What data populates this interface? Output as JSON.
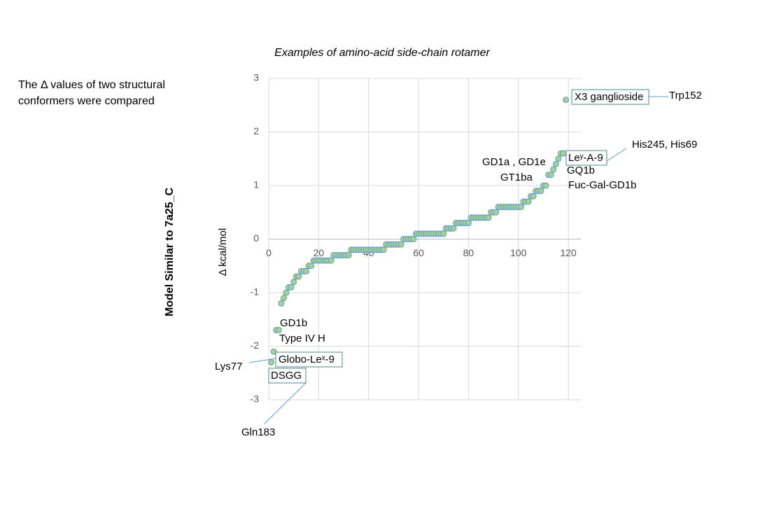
{
  "chart_data": {
    "type": "scatter",
    "title": "Examples of amino-acid side-chain rotamer",
    "note": "The Δ values of two structural conformers were compared",
    "side_label": "Model Similar to 7a25_C",
    "y_label": "Δ kcal/mol",
    "x": [
      1,
      2,
      3,
      4,
      5,
      6,
      7,
      8,
      9,
      10,
      11,
      12,
      13,
      14,
      15,
      16,
      17,
      18,
      19,
      20,
      21,
      22,
      23,
      24,
      25,
      26,
      27,
      28,
      29,
      30,
      31,
      32,
      33,
      34,
      35,
      36,
      37,
      38,
      39,
      40,
      41,
      42,
      43,
      44,
      45,
      46,
      47,
      48,
      49,
      50,
      51,
      52,
      53,
      54,
      55,
      56,
      57,
      58,
      59,
      60,
      61,
      62,
      63,
      64,
      65,
      66,
      67,
      68,
      69,
      70,
      71,
      72,
      73,
      74,
      75,
      76,
      77,
      78,
      79,
      80,
      81,
      82,
      83,
      84,
      85,
      86,
      87,
      88,
      89,
      90,
      91,
      92,
      93,
      94,
      95,
      96,
      97,
      98,
      99,
      100,
      101,
      102,
      103,
      104,
      105,
      106,
      107,
      108,
      109,
      110,
      111,
      112,
      113,
      114,
      115,
      116,
      117,
      118,
      119
    ],
    "values": [
      -2.3,
      -2.1,
      -1.7,
      -1.7,
      -1.2,
      -1.1,
      -1.0,
      -0.9,
      -0.9,
      -0.8,
      -0.7,
      -0.7,
      -0.6,
      -0.6,
      -0.6,
      -0.5,
      -0.5,
      -0.4,
      -0.4,
      -0.4,
      -0.4,
      -0.4,
      -0.4,
      -0.4,
      -0.4,
      -0.3,
      -0.3,
      -0.3,
      -0.3,
      -0.3,
      -0.3,
      -0.3,
      -0.2,
      -0.2,
      -0.2,
      -0.2,
      -0.2,
      -0.2,
      -0.2,
      -0.2,
      -0.2,
      -0.2,
      -0.2,
      -0.2,
      -0.2,
      -0.2,
      -0.1,
      -0.1,
      -0.1,
      -0.1,
      -0.1,
      -0.1,
      -0.1,
      0,
      0,
      0,
      0,
      0,
      0.1,
      0.1,
      0.1,
      0.1,
      0.1,
      0.1,
      0.1,
      0.1,
      0.1,
      0.1,
      0.1,
      0.1,
      0.2,
      0.2,
      0.2,
      0.2,
      0.3,
      0.3,
      0.3,
      0.3,
      0.3,
      0.3,
      0.4,
      0.4,
      0.4,
      0.4,
      0.4,
      0.4,
      0.4,
      0.4,
      0.5,
      0.5,
      0.5,
      0.6,
      0.6,
      0.6,
      0.6,
      0.6,
      0.6,
      0.6,
      0.6,
      0.6,
      0.6,
      0.7,
      0.7,
      0.7,
      0.8,
      0.8,
      0.9,
      0.9,
      0.9,
      1.0,
      1.0,
      1.2,
      1.2,
      1.3,
      1.4,
      1.5,
      1.6,
      1.6,
      2.6
    ],
    "color": "#a9d18e",
    "edge_color": "#5b9bd5",
    "xlim": [
      0,
      125
    ],
    "xticks": [
      0,
      20,
      40,
      60,
      80,
      100,
      120
    ],
    "ylim": [
      -3,
      3
    ],
    "yticks": [
      -3,
      -2,
      -1,
      0,
      1,
      2,
      3
    ],
    "grid": true,
    "annotations": [
      "X3 ganglioside",
      "Trp152",
      "His245, His69",
      "Leʸ-A-9",
      "GD1a , GD1e",
      "GQ1b",
      "GT1ba",
      "Fuc-Gal-GD1b",
      "GD1b",
      "Type IV H",
      "Globo-Leˣ-9",
      "Lys77",
      "DSGG",
      "Gln183"
    ]
  }
}
